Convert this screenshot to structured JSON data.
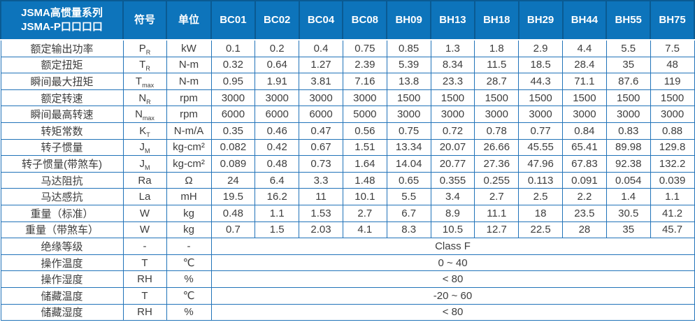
{
  "header": {
    "title_line1": "JSMA高惯量系列",
    "title_line2": "JSMA-P口口口口",
    "symbol_col": "符号",
    "unit_col": "单位",
    "models": [
      "BC01",
      "BC02",
      "BC04",
      "BC08",
      "BH09",
      "BH13",
      "BH18",
      "BH29",
      "BH44",
      "BH55",
      "BH75"
    ]
  },
  "chart_data": {
    "type": "table",
    "title": "JSMA高惯量系列 JSMA-P口口口口 规格表",
    "columns": [
      "BC01",
      "BC02",
      "BC04",
      "BC08",
      "BH09",
      "BH13",
      "BH18",
      "BH29",
      "BH44",
      "BH55",
      "BH75"
    ]
  },
  "spec_rows": [
    {
      "label": "额定输出功率",
      "symbol_main": "P",
      "symbol_sub": "R",
      "unit": "kW",
      "values": [
        "0.1",
        "0.2",
        "0.4",
        "0.75",
        "0.85",
        "1.3",
        "1.8",
        "2.9",
        "4.4",
        "5.5",
        "7.5"
      ]
    },
    {
      "label": "额定扭矩",
      "symbol_main": "T",
      "symbol_sub": "R",
      "unit": "N-m",
      "values": [
        "0.32",
        "0.64",
        "1.27",
        "2.39",
        "5.39",
        "8.34",
        "11.5",
        "18.5",
        "28.4",
        "35",
        "48"
      ]
    },
    {
      "label": "瞬间最大扭矩",
      "symbol_main": "T",
      "symbol_sub": "max",
      "unit": "N-m",
      "values": [
        "0.95",
        "1.91",
        "3.81",
        "7.16",
        "13.8",
        "23.3",
        "28.7",
        "44.3",
        "71.1",
        "87.6",
        "119"
      ]
    },
    {
      "label": "额定转速",
      "symbol_main": "N",
      "symbol_sub": "R",
      "unit": "rpm",
      "values": [
        "3000",
        "3000",
        "3000",
        "3000",
        "1500",
        "1500",
        "1500",
        "1500",
        "1500",
        "1500",
        "1500"
      ]
    },
    {
      "label": "瞬间最高转速",
      "symbol_main": "N",
      "symbol_sub": "max",
      "unit": "rpm",
      "values": [
        "6000",
        "6000",
        "6000",
        "5000",
        "3000",
        "3000",
        "3000",
        "3000",
        "3000",
        "3000",
        "3000"
      ]
    },
    {
      "label": "转矩常数",
      "symbol_main": "K",
      "symbol_sub": "T",
      "unit": "N-m/A",
      "values": [
        "0.35",
        "0.46",
        "0.47",
        "0.56",
        "0.75",
        "0.72",
        "0.78",
        "0.77",
        "0.84",
        "0.83",
        "0.88"
      ]
    },
    {
      "label": "转子惯量",
      "symbol_main": "J",
      "symbol_sub": "M",
      "unit": "kg-cm²",
      "values": [
        "0.082",
        "0.42",
        "0.67",
        "1.51",
        "13.34",
        "20.07",
        "26.66",
        "45.55",
        "65.41",
        "89.98",
        "129.8"
      ]
    },
    {
      "label": "转子惯量(带煞车)",
      "symbol_main": "J",
      "symbol_sub": "M",
      "unit": "kg-cm²",
      "values": [
        "0.089",
        "0.48",
        "0.73",
        "1.64",
        "14.04",
        "20.77",
        "27.36",
        "47.96",
        "67.83",
        "92.38",
        "132.2"
      ]
    },
    {
      "label": "马达阻抗",
      "symbol_main": "Ra",
      "symbol_sub": "",
      "unit": "Ω",
      "values": [
        "24",
        "6.4",
        "3.3",
        "1.48",
        "0.65",
        "0.355",
        "0.255",
        "0.113",
        "0.091",
        "0.054",
        "0.039"
      ]
    },
    {
      "label": "马达感抗",
      "symbol_main": "La",
      "symbol_sub": "",
      "unit": "mH",
      "values": [
        "19.5",
        "16.2",
        "11",
        "10.1",
        "5.5",
        "3.4",
        "2.7",
        "2.5",
        "2.2",
        "1.4",
        "1.1"
      ]
    },
    {
      "label": "重量（标准）",
      "symbol_main": "W",
      "symbol_sub": "",
      "unit": "kg",
      "values": [
        "0.48",
        "1.1",
        "1.53",
        "2.7",
        "6.7",
        "8.9",
        "11.1",
        "18",
        "23.5",
        "30.5",
        "41.2"
      ]
    },
    {
      "label": "重量（带煞车）",
      "symbol_main": "W",
      "symbol_sub": "",
      "unit": "kg",
      "values": [
        "0.7",
        "1.5",
        "2.03",
        "4.1",
        "8.3",
        "10.5",
        "12.7",
        "22.5",
        "28",
        "35",
        "45.7"
      ]
    },
    {
      "label": "绝缘等级",
      "symbol_main": "-",
      "symbol_sub": "",
      "unit": "-",
      "span_value": "Class F"
    },
    {
      "label": "操作温度",
      "symbol_main": "T",
      "symbol_sub": "",
      "unit": "℃",
      "span_value": "0 ~ 40"
    },
    {
      "label": "操作湿度",
      "symbol_main": "RH",
      "symbol_sub": "",
      "unit": "%",
      "span_value": "< 80"
    },
    {
      "label": "储藏温度",
      "symbol_main": "T",
      "symbol_sub": "",
      "unit": "℃",
      "span_value": "-20 ~ 60"
    },
    {
      "label": "储藏湿度",
      "symbol_main": "RH",
      "symbol_sub": "",
      "unit": "%",
      "span_value": "< 80"
    }
  ],
  "colors": {
    "header_bg": "#0d74bb",
    "header_border": "#0a5a92",
    "grid_border": "#2173b9",
    "header_text": "#ffffff",
    "body_text": "#3d3d3d"
  }
}
